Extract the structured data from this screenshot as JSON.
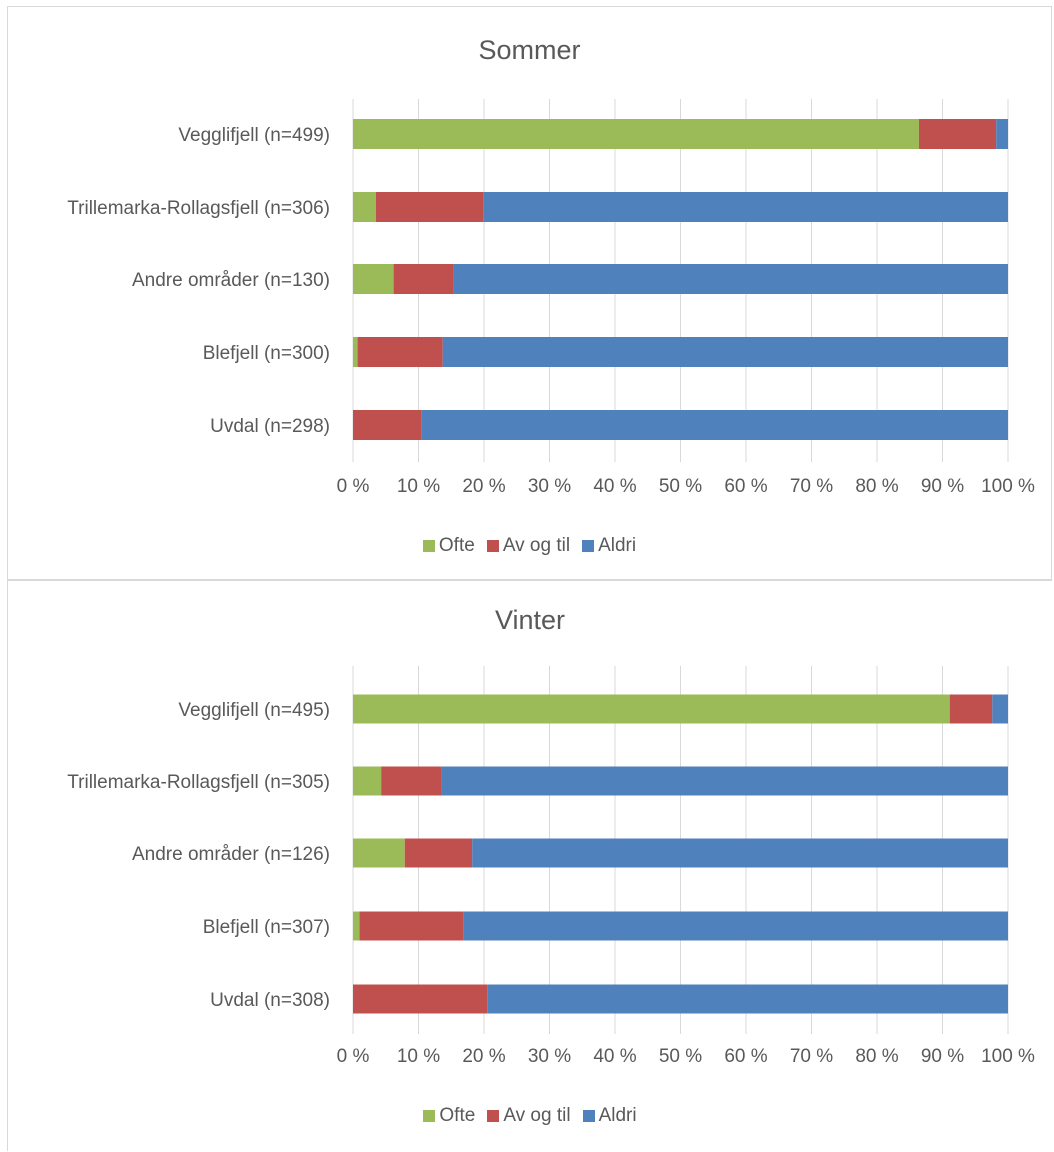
{
  "colors": {
    "Ofte": "#9bbb59",
    "Av og til": "#c0504d",
    "Aldri": "#4f81bd"
  },
  "x_ticks": [
    "0 %",
    "10 %",
    "20 %",
    "30 %",
    "40 %",
    "50 %",
    "60 %",
    "70 %",
    "80 %",
    "90 %",
    "100 %"
  ],
  "legend": [
    "Ofte",
    "Av og til",
    "Aldri"
  ],
  "chart_data": [
    {
      "type": "bar",
      "orientation": "horizontal",
      "stacked": "percent",
      "title": "Sommer",
      "categories": [
        "Vegglifjell (n=499)",
        "Trillemarka-Rollagsfjell (n=306)",
        "Andre områder (n=130)",
        "Blefjell (n=300)",
        "Uvdal (n=298)"
      ],
      "series": [
        {
          "name": "Ofte",
          "values": [
            86.4,
            3.5,
            6.2,
            0.7,
            0.0
          ]
        },
        {
          "name": "Av og til",
          "values": [
            11.8,
            16.4,
            9.2,
            13.0,
            10.4
          ]
        },
        {
          "name": "Aldri",
          "values": [
            1.8,
            80.1,
            84.6,
            86.3,
            89.6
          ]
        }
      ],
      "xlim": [
        0,
        100
      ],
      "grid": true,
      "legend_position": "bottom"
    },
    {
      "type": "bar",
      "orientation": "horizontal",
      "stacked": "percent",
      "title": "Vinter",
      "categories": [
        "Vegglifjell (n=495)",
        "Trillemarka-Rollagsfjell (n=305)",
        "Andre områder (n=126)",
        "Blefjell (n=307)",
        "Uvdal (n=308)"
      ],
      "series": [
        {
          "name": "Ofte",
          "values": [
            91.1,
            4.3,
            7.9,
            1.0,
            0.0
          ]
        },
        {
          "name": "Av og til",
          "values": [
            6.5,
            9.2,
            10.3,
            15.9,
            20.5
          ]
        },
        {
          "name": "Aldri",
          "values": [
            2.4,
            86.5,
            81.8,
            83.1,
            79.5
          ]
        }
      ],
      "xlim": [
        0,
        100
      ],
      "grid": true,
      "legend_position": "bottom"
    }
  ]
}
